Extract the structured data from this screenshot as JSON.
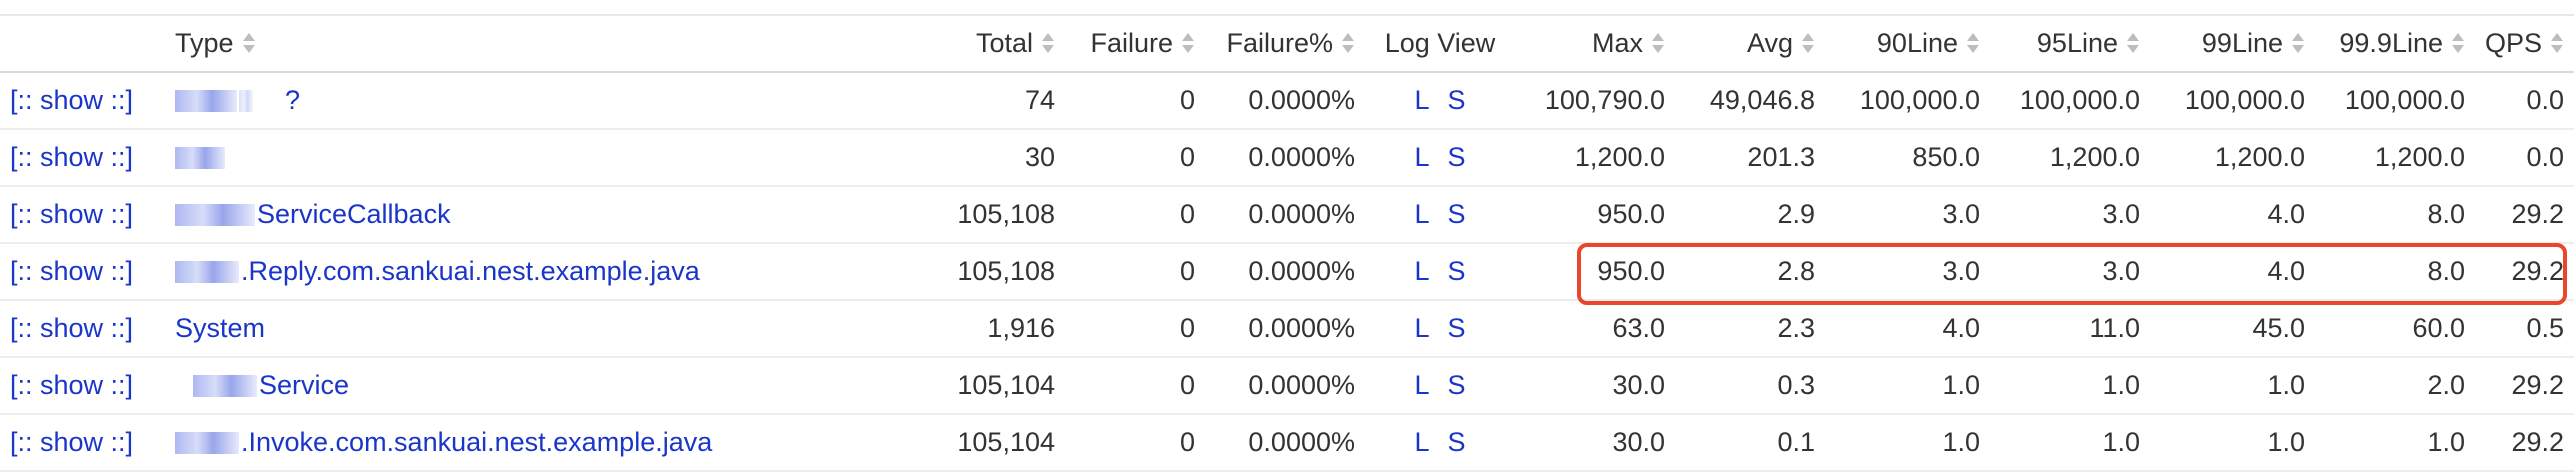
{
  "columns": {
    "type": "Type",
    "total": "Total",
    "failure": "Failure",
    "failure_pct": "Failure%",
    "log_view": "Log View",
    "max": "Max",
    "avg": "Avg",
    "line90": "90Line",
    "line95": "95Line",
    "line99": "99Line",
    "line999": "99.9Line",
    "qps": "QPS"
  },
  "show_label": "[:: show ::]",
  "log_links": {
    "l": "L",
    "s": "S"
  },
  "rows": [
    {
      "type": "?",
      "total": "74",
      "failure": "0",
      "failure_pct": "0.0000%",
      "max": "100,790.0",
      "avg": "49,046.8",
      "line90": "100,000.0",
      "line95": "100,000.0",
      "line99": "100,000.0",
      "line999": "100,000.0",
      "qps": "0.0"
    },
    {
      "type": "",
      "total": "30",
      "failure": "0",
      "failure_pct": "0.0000%",
      "max": "1,200.0",
      "avg": "201.3",
      "line90": "850.0",
      "line95": "1,200.0",
      "line99": "1,200.0",
      "line999": "1,200.0",
      "qps": "0.0"
    },
    {
      "type": "ServiceCallback",
      "total": "105,108",
      "failure": "0",
      "failure_pct": "0.0000%",
      "max": "950.0",
      "avg": "2.9",
      "line90": "3.0",
      "line95": "3.0",
      "line99": "4.0",
      "line999": "8.0",
      "qps": "29.2"
    },
    {
      "type": ".Reply.com.sankuai.nest.example.java",
      "total": "105,108",
      "failure": "0",
      "failure_pct": "0.0000%",
      "max": "950.0",
      "avg": "2.8",
      "line90": "3.0",
      "line95": "3.0",
      "line99": "4.0",
      "line999": "8.0",
      "qps": "29.2"
    },
    {
      "type": "System",
      "total": "1,916",
      "failure": "0",
      "failure_pct": "0.0000%",
      "max": "63.0",
      "avg": "2.3",
      "line90": "4.0",
      "line95": "11.0",
      "line99": "45.0",
      "line999": "60.0",
      "qps": "0.5"
    },
    {
      "type": "Service",
      "total": "105,104",
      "failure": "0",
      "failure_pct": "0.0000%",
      "max": "30.0",
      "avg": "0.3",
      "line90": "1.0",
      "line95": "1.0",
      "line99": "1.0",
      "line999": "2.0",
      "qps": "29.2"
    },
    {
      "type": ".Invoke.com.sankuai.nest.example.java",
      "total": "105,104",
      "failure": "0",
      "failure_pct": "0.0000%",
      "max": "30.0",
      "avg": "0.1",
      "line90": "1.0",
      "line95": "1.0",
      "line99": "1.0",
      "line999": "1.0",
      "qps": "29.2"
    }
  ],
  "colors": {
    "link": "#1a35c9",
    "highlight": "#e8472a",
    "text": "#333333",
    "divider": "#ededed"
  },
  "icons": {
    "sort": "sort-arrows-icon"
  }
}
